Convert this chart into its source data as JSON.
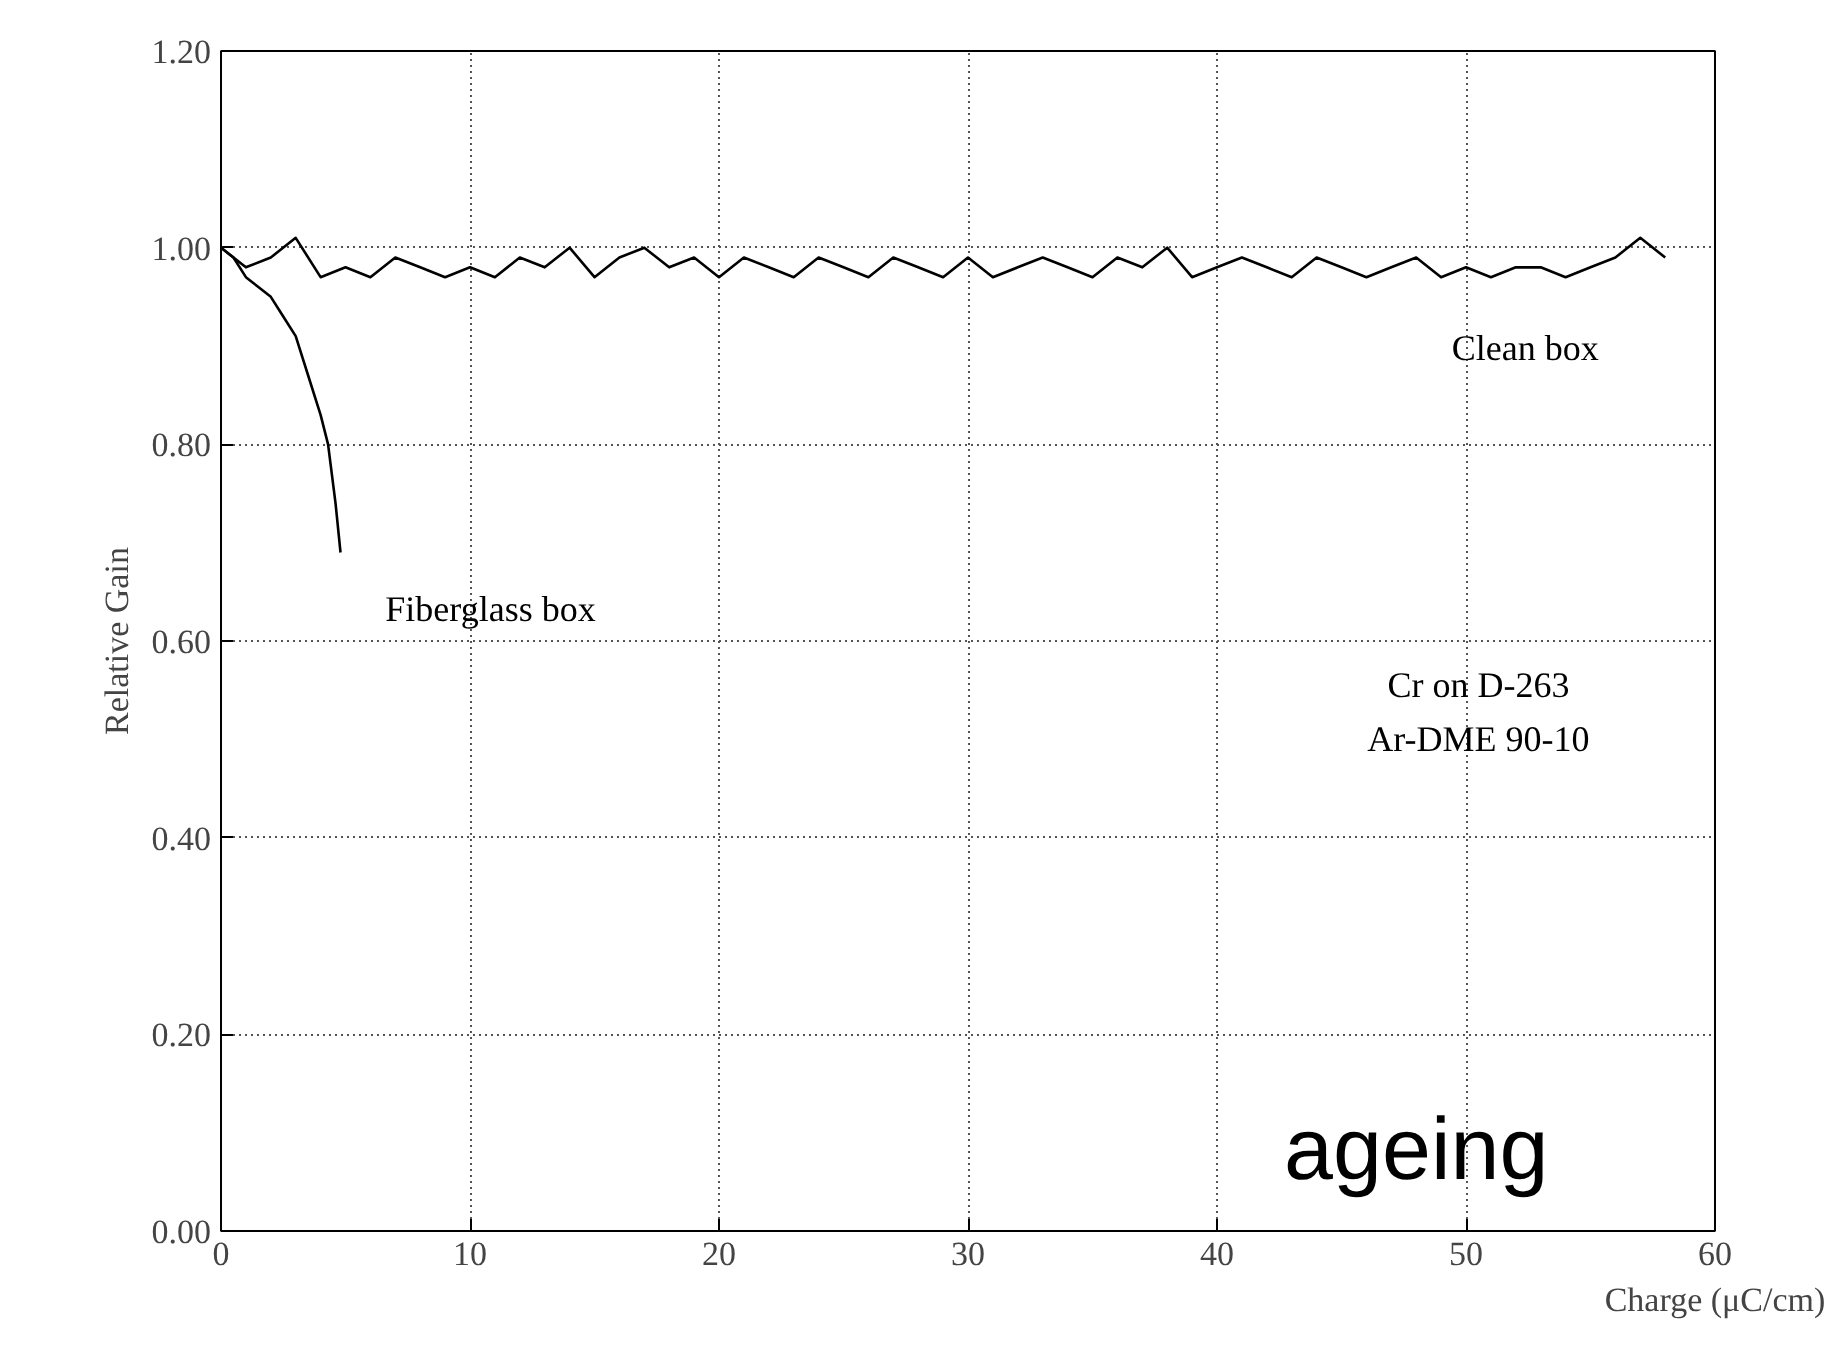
{
  "chart_data": {
    "type": "line",
    "xlabel": "Charge (μC/cm)",
    "ylabel": "Relative Gain",
    "xlim": [
      0,
      60
    ],
    "ylim": [
      0,
      1.2
    ],
    "xticks": [
      0,
      10,
      20,
      30,
      40,
      50,
      60
    ],
    "yticks": [
      {
        "value": 0,
        "label": "0.00"
      },
      {
        "value": 0.2,
        "label": "0.20"
      },
      {
        "value": 0.4,
        "label": "0.40"
      },
      {
        "value": 0.6,
        "label": "0.60"
      },
      {
        "value": 0.8,
        "label": "0.80"
      },
      {
        "value": 1.0,
        "label": "1.00"
      },
      {
        "value": 1.2,
        "label": "1.20"
      }
    ],
    "grid": true,
    "line_style": "solid",
    "marker": "none",
    "series": [
      {
        "name": "Clean box",
        "color": "#000000",
        "x": [
          0,
          1,
          2,
          3,
          4,
          5,
          6,
          7,
          8,
          9,
          10,
          11,
          12,
          13,
          14,
          15,
          16,
          17,
          18,
          19,
          20,
          21,
          22,
          23,
          24,
          25,
          26,
          27,
          28,
          29,
          30,
          31,
          32,
          33,
          34,
          35,
          36,
          37,
          38,
          39,
          40,
          41,
          42,
          43,
          44,
          45,
          46,
          47,
          48,
          49,
          50,
          51,
          52,
          53,
          54,
          55,
          56,
          57,
          58
        ],
        "values": [
          1.0,
          0.98,
          0.99,
          1.01,
          0.97,
          0.98,
          0.97,
          0.99,
          0.98,
          0.97,
          0.98,
          0.97,
          0.99,
          0.98,
          1.0,
          0.97,
          0.99,
          1.0,
          0.98,
          0.99,
          0.97,
          0.99,
          0.98,
          0.97,
          0.99,
          0.98,
          0.97,
          0.99,
          0.98,
          0.97,
          0.99,
          0.97,
          0.98,
          0.99,
          0.98,
          0.97,
          0.99,
          0.98,
          1.0,
          0.97,
          0.98,
          0.99,
          0.98,
          0.97,
          0.99,
          0.98,
          0.97,
          0.98,
          0.99,
          0.97,
          0.98,
          0.97,
          0.98,
          0.98,
          0.97,
          0.98,
          0.99,
          1.01,
          0.99
        ]
      },
      {
        "name": "Fiberglass box",
        "color": "#000000",
        "x": [
          0,
          0.5,
          1,
          1.5,
          2,
          2.5,
          3,
          3.5,
          4,
          4.3,
          4.6,
          4.8
        ],
        "values": [
          1.0,
          0.99,
          0.97,
          0.96,
          0.95,
          0.93,
          0.91,
          0.87,
          0.83,
          0.8,
          0.74,
          0.69
        ]
      }
    ],
    "annotations": [
      "Cr on D-263",
      "Ar-DME 90-10",
      "ageing"
    ]
  }
}
